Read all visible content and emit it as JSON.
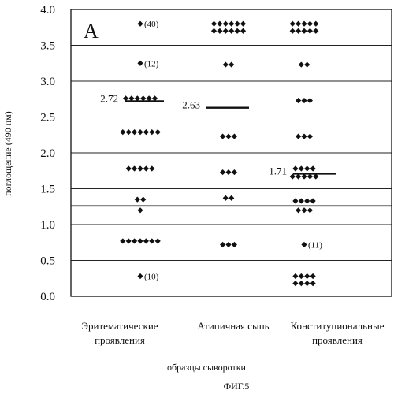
{
  "chart_data": {
    "type": "scatter",
    "subtype": "dot-plot",
    "panel_label": "A",
    "ylabel": "поглощение (490 нм)",
    "xlabel": "образцы сыворотки",
    "figure_label": "ФИГ.5",
    "ylim": [
      0.0,
      4.0
    ],
    "yticks": [
      "0.0",
      "0.5",
      "1.0",
      "1.5",
      "2.0",
      "2.5",
      "3.0",
      "3.5",
      "4.0"
    ],
    "grid": true,
    "cutoff_line": 1.26,
    "categories": [
      {
        "line1": "Эритематические",
        "line2": "проявления"
      },
      {
        "line1": "Атипичная сыпь",
        "line2": ""
      },
      {
        "line1": "Конституциональные",
        "line2": "проявления"
      }
    ],
    "series": [
      {
        "mean": 2.72,
        "mean_label": "2.72",
        "points": [
          {
            "y": 3.8,
            "n": 1
          },
          {
            "y": 3.25,
            "n": 1
          },
          {
            "y": 2.76,
            "n": 6
          },
          {
            "y": 2.29,
            "n": 7
          },
          {
            "y": 1.78,
            "n": 5
          },
          {
            "y": 1.35,
            "n": 2
          },
          {
            "y": 1.2,
            "n": 1
          },
          {
            "y": 0.77,
            "n": 7
          },
          {
            "y": 0.28,
            "n": 1
          }
        ],
        "annotations": [
          {
            "y": 3.8,
            "text": "(40)"
          },
          {
            "y": 3.25,
            "text": "(12)"
          },
          {
            "y": 0.28,
            "text": "(10)"
          }
        ]
      },
      {
        "mean": 2.63,
        "mean_label": "2.63",
        "points": [
          {
            "y": 3.8,
            "n": 6
          },
          {
            "y": 3.7,
            "n": 6
          },
          {
            "y": 3.23,
            "n": 2
          },
          {
            "y": 2.23,
            "n": 3
          },
          {
            "y": 1.73,
            "n": 3
          },
          {
            "y": 1.37,
            "n": 2
          },
          {
            "y": 0.72,
            "n": 3
          }
        ],
        "annotations": []
      },
      {
        "mean": 1.71,
        "mean_label": "1.71",
        "points": [
          {
            "y": 3.8,
            "n": 5
          },
          {
            "y": 3.7,
            "n": 5
          },
          {
            "y": 3.23,
            "n": 2
          },
          {
            "y": 2.73,
            "n": 3
          },
          {
            "y": 2.23,
            "n": 3
          },
          {
            "y": 1.78,
            "n": 4
          },
          {
            "y": 1.67,
            "n": 5
          },
          {
            "y": 1.33,
            "n": 4
          },
          {
            "y": 1.2,
            "n": 3
          },
          {
            "y": 0.72,
            "n": 1
          },
          {
            "y": 0.28,
            "n": 4
          },
          {
            "y": 0.18,
            "n": 4
          }
        ],
        "annotations": [
          {
            "y": 0.72,
            "text": "(11)"
          }
        ]
      }
    ]
  }
}
